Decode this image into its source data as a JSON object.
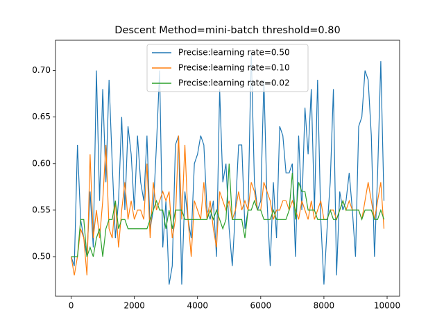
{
  "chart_data": {
    "type": "line",
    "title": "Descent Method=mini-batch threshold=0.80",
    "x": [
      0,
      100,
      200,
      300,
      400,
      500,
      600,
      700,
      800,
      900,
      1000,
      1100,
      1200,
      1300,
      1400,
      1500,
      1600,
      1700,
      1800,
      1900,
      2000,
      2100,
      2200,
      2300,
      2400,
      2500,
      2600,
      2700,
      2800,
      2900,
      3000,
      3100,
      3200,
      3300,
      3400,
      3500,
      3600,
      3700,
      3800,
      3900,
      4000,
      4100,
      4200,
      4300,
      4400,
      4500,
      4600,
      4700,
      4800,
      4900,
      5000,
      5100,
      5200,
      5300,
      5400,
      5500,
      5600,
      5700,
      5800,
      5900,
      6000,
      6100,
      6200,
      6300,
      6400,
      6500,
      6600,
      6700,
      6800,
      6900,
      7000,
      7100,
      7200,
      7300,
      7400,
      7500,
      7600,
      7700,
      7800,
      7900,
      8000,
      8100,
      8200,
      8300,
      8400,
      8500,
      8600,
      8700,
      8800,
      8900,
      9000,
      9100,
      9200,
      9300,
      9400,
      9500,
      9600,
      9700,
      9800,
      9900
    ],
    "series": [
      {
        "name": "Precise:learning rate=0.50",
        "color": "#1f77b4",
        "values": [
          0.5,
          0.49,
          0.62,
          0.54,
          0.52,
          0.5,
          0.57,
          0.51,
          0.7,
          0.56,
          0.68,
          0.58,
          0.69,
          0.6,
          0.52,
          0.56,
          0.65,
          0.55,
          0.64,
          0.61,
          0.55,
          0.63,
          0.58,
          0.56,
          0.63,
          0.53,
          0.55,
          0.62,
          0.7,
          0.51,
          0.56,
          0.47,
          0.49,
          0.62,
          0.63,
          0.47,
          0.57,
          0.54,
          0.52,
          0.6,
          0.61,
          0.63,
          0.62,
          0.55,
          0.54,
          0.56,
          0.5,
          0.68,
          0.58,
          0.6,
          0.53,
          0.49,
          0.55,
          0.62,
          0.62,
          0.53,
          0.55,
          0.72,
          0.58,
          0.55,
          0.56,
          0.69,
          0.56,
          0.49,
          0.58,
          0.52,
          0.64,
          0.63,
          0.59,
          0.59,
          0.6,
          0.5,
          0.63,
          0.55,
          0.66,
          0.61,
          0.68,
          0.55,
          0.69,
          0.54,
          0.47,
          0.53,
          0.58,
          0.68,
          0.48,
          0.57,
          0.55,
          0.56,
          0.59,
          0.55,
          0.5,
          0.64,
          0.65,
          0.7,
          0.69,
          0.63,
          0.5,
          0.59,
          0.71,
          0.56
        ]
      },
      {
        "name": "Precise:learning rate=0.10",
        "color": "#ff7f0e",
        "values": [
          0.5,
          0.48,
          0.5,
          0.53,
          0.52,
          0.48,
          0.61,
          0.52,
          0.55,
          0.52,
          0.56,
          0.62,
          0.53,
          0.52,
          0.56,
          0.51,
          0.55,
          0.58,
          0.54,
          0.56,
          0.54,
          0.55,
          0.55,
          0.54,
          0.6,
          0.52,
          0.58,
          0.55,
          0.56,
          0.57,
          0.56,
          0.57,
          0.52,
          0.54,
          0.63,
          0.54,
          0.62,
          0.54,
          0.5,
          0.56,
          0.55,
          0.54,
          0.58,
          0.54,
          0.56,
          0.53,
          0.51,
          0.57,
          0.56,
          0.55,
          0.56,
          0.54,
          0.55,
          0.57,
          0.55,
          0.56,
          0.55,
          0.58,
          0.57,
          0.55,
          0.55,
          0.58,
          0.57,
          0.56,
          0.54,
          0.55,
          0.55,
          0.56,
          0.56,
          0.55,
          0.56,
          0.55,
          0.54,
          0.56,
          0.55,
          0.54,
          0.56,
          0.54,
          0.55,
          0.56,
          0.54,
          0.54,
          0.55,
          0.55,
          0.54,
          0.55,
          0.56,
          0.55,
          0.56,
          0.55,
          0.55,
          0.55,
          0.54,
          0.56,
          0.58,
          0.56,
          0.54,
          0.56,
          0.58,
          0.53
        ]
      },
      {
        "name": "Precise:learning rate=0.02",
        "color": "#2ca02c",
        "values": [
          0.5,
          0.5,
          0.5,
          0.54,
          0.54,
          0.5,
          0.51,
          0.5,
          0.52,
          0.53,
          0.5,
          0.53,
          0.54,
          0.54,
          0.56,
          0.53,
          0.54,
          0.54,
          0.53,
          0.53,
          0.53,
          0.53,
          0.53,
          0.53,
          0.53,
          0.54,
          0.55,
          0.56,
          0.55,
          0.55,
          0.53,
          0.55,
          0.53,
          0.55,
          0.55,
          0.55,
          0.54,
          0.54,
          0.54,
          0.54,
          0.54,
          0.54,
          0.54,
          0.54,
          0.55,
          0.54,
          0.55,
          0.54,
          0.53,
          0.54,
          0.6,
          0.54,
          0.54,
          0.54,
          0.54,
          0.52,
          0.55,
          0.55,
          0.56,
          0.55,
          0.55,
          0.54,
          0.54,
          0.54,
          0.55,
          0.54,
          0.54,
          0.54,
          0.54,
          0.55,
          0.59,
          0.54,
          0.58,
          0.57,
          0.57,
          0.55,
          0.55,
          0.55,
          0.54,
          0.54,
          0.54,
          0.54,
          0.55,
          0.54,
          0.54,
          0.55,
          0.56,
          0.55,
          0.55,
          0.55,
          0.55,
          0.55,
          0.54,
          0.55,
          0.55,
          0.55,
          0.54,
          0.54,
          0.55,
          0.54
        ]
      }
    ],
    "xlim": [
      -495,
      10395
    ],
    "ylim": [
      0.4575,
      0.7325
    ],
    "xticks": [
      0,
      2000,
      4000,
      6000,
      8000,
      10000
    ],
    "yticks": [
      {
        "value": 0.5,
        "label": "0.50"
      },
      0.55,
      {
        "value": 0.6,
        "label": "0.60"
      },
      0.65,
      {
        "value": 0.7,
        "label": "0.70"
      }
    ],
    "legend": "upper center"
  }
}
